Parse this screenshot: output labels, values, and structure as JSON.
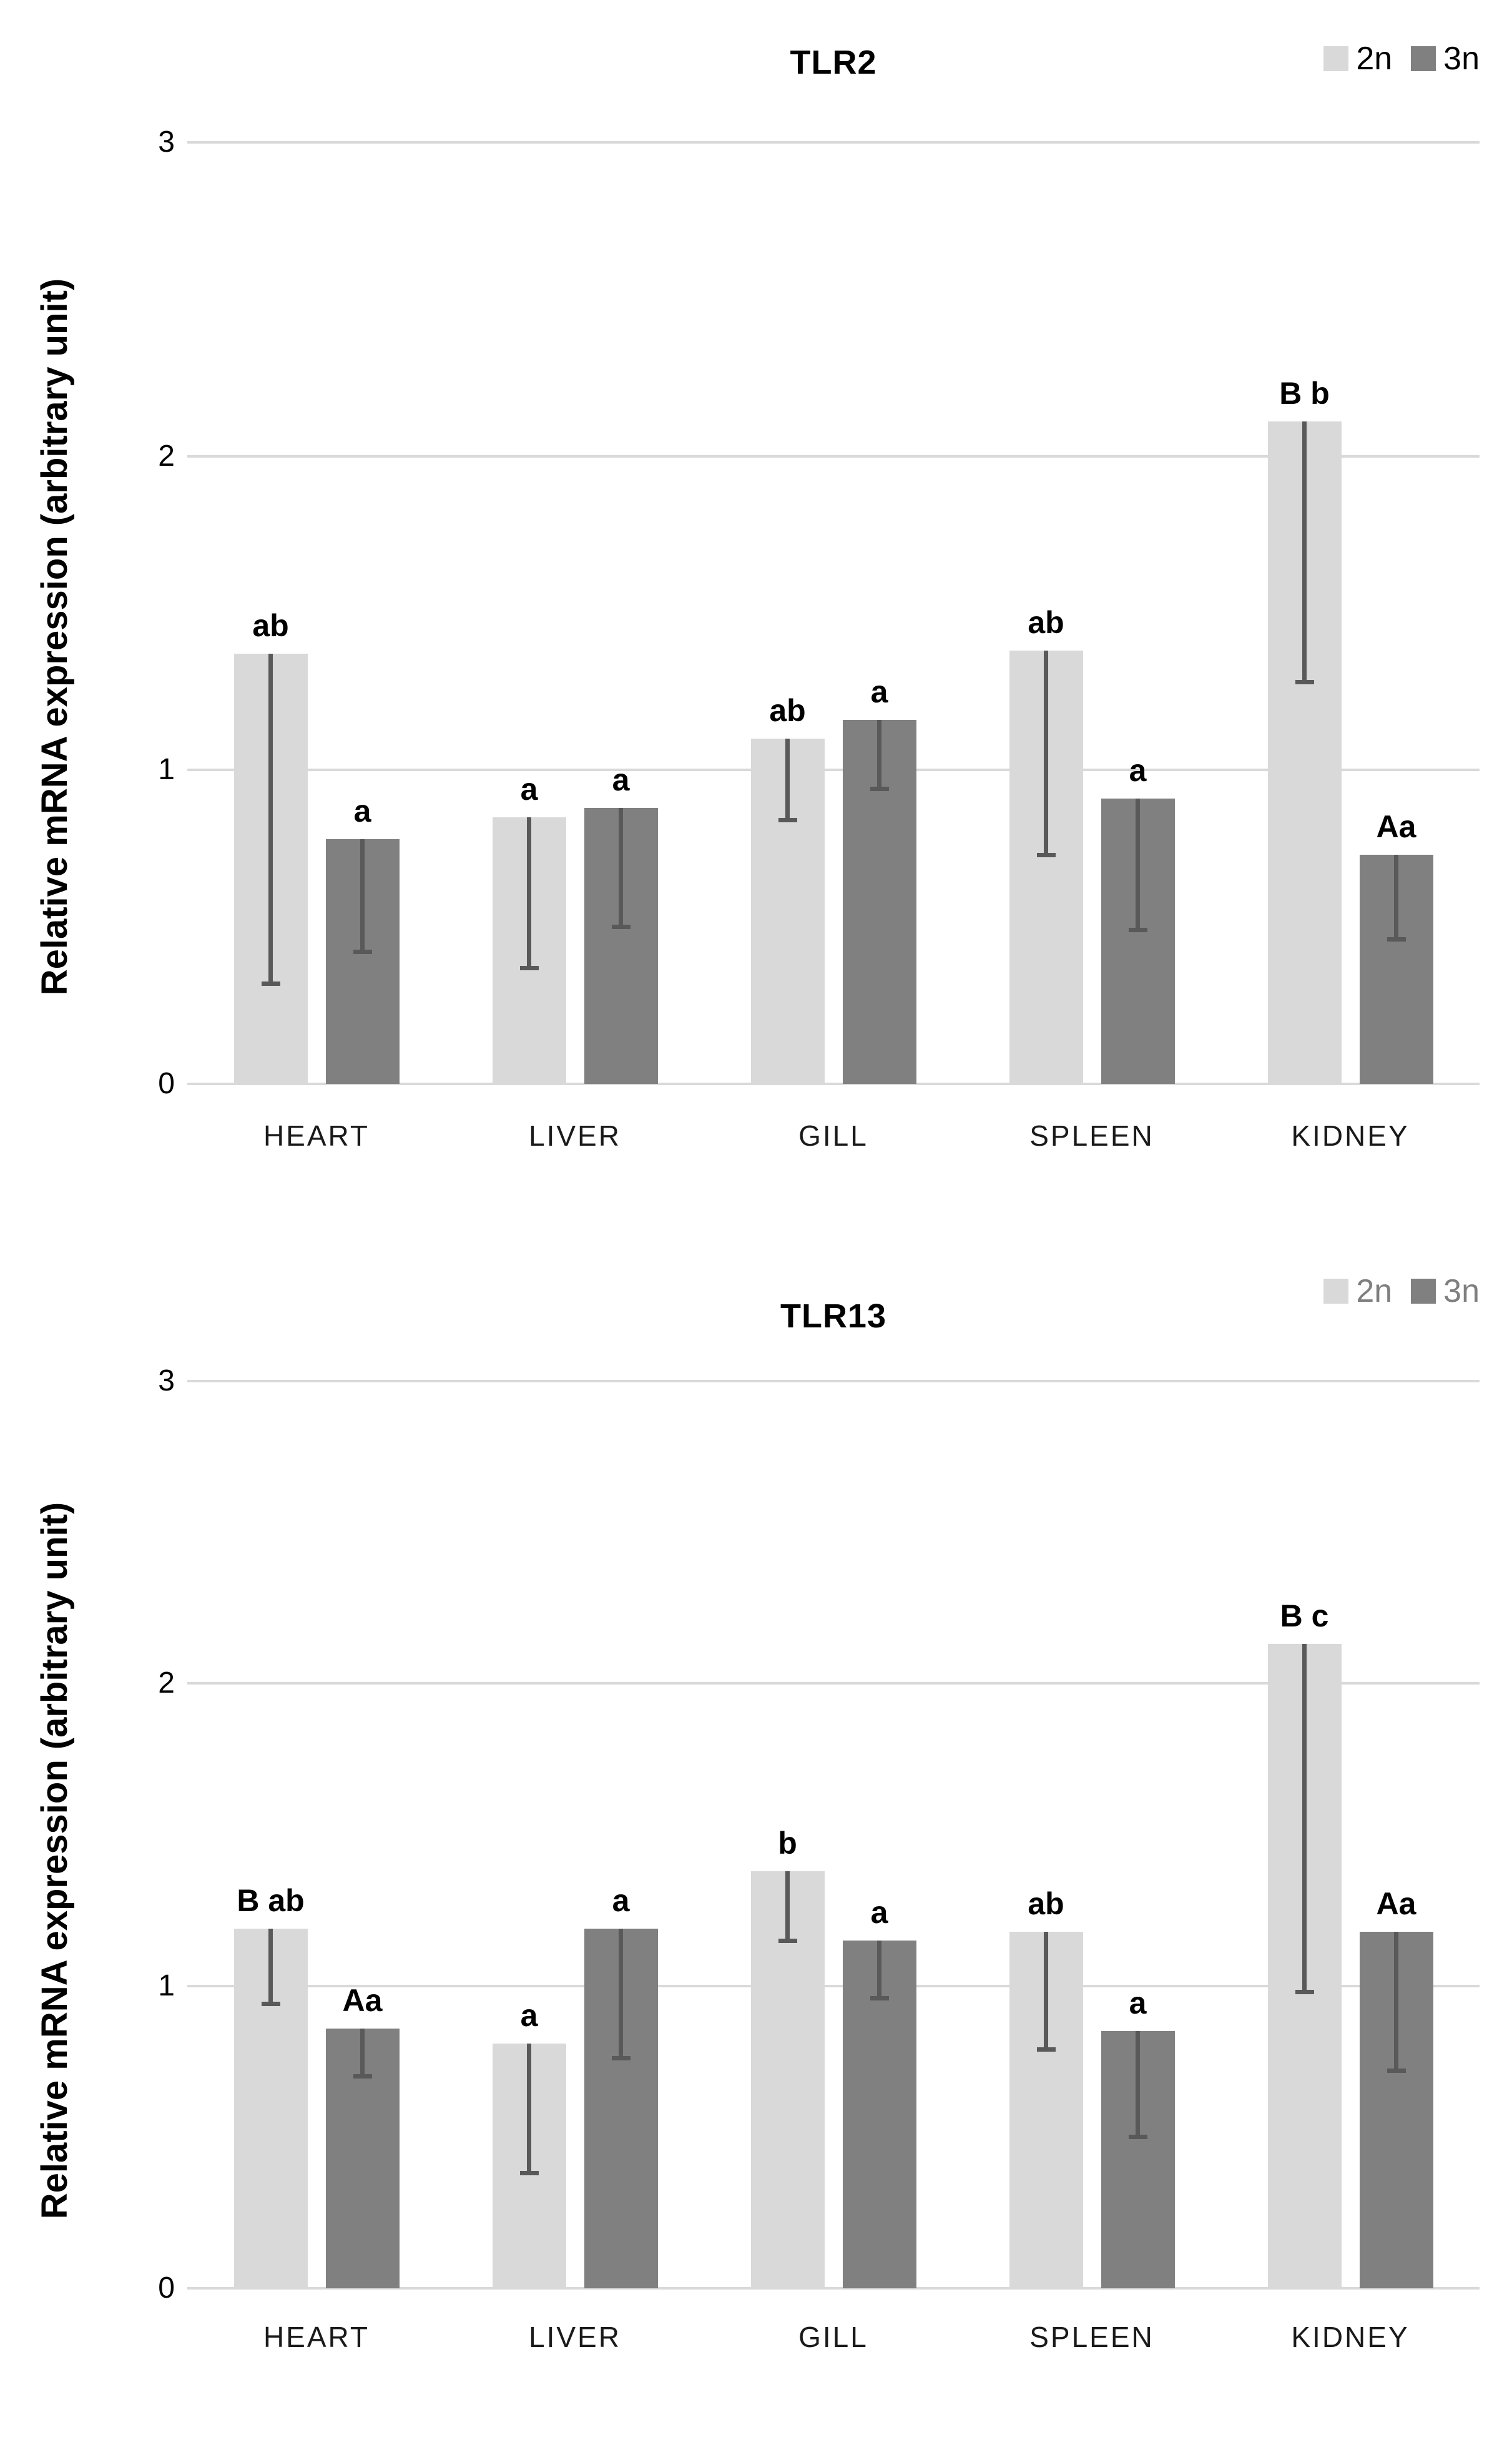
{
  "colors": {
    "bar_2n": "#d9d9d9",
    "bar_3n": "#808080",
    "error_bar": "#595959",
    "gridline": "#d9d9d9",
    "title_text": "#000000",
    "legend_text_top": "#000000",
    "legend_text_bottom": "#7f7f7f"
  },
  "chart_data": [
    {
      "type": "bar",
      "title": "TLR2",
      "ylabel": "Relative mRNA expression (arbitrary unit)",
      "xlabel": "",
      "categories": [
        "HEART",
        "LIVER",
        "GILL",
        "SPLEEN",
        "KIDNEY"
      ],
      "y_ticks": [
        0,
        1,
        2,
        3
      ],
      "ylim": [
        0,
        3
      ],
      "grid": true,
      "legend_position": "top-right",
      "legend": [
        "2n",
        "3n"
      ],
      "legend_text_color": "#000000",
      "series": [
        {
          "name": "2n",
          "values": [
            1.37,
            0.85,
            1.1,
            1.38,
            2.11
          ],
          "error_low": [
            0.32,
            0.37,
            0.84,
            0.73,
            1.28
          ],
          "sig_labels": [
            "ab",
            "a",
            "ab",
            "ab",
            "B b"
          ]
        },
        {
          "name": "3n",
          "values": [
            0.78,
            0.88,
            1.16,
            0.91,
            0.73
          ],
          "error_low": [
            0.42,
            0.5,
            0.94,
            0.49,
            0.46
          ],
          "sig_labels": [
            "a",
            "a",
            "a",
            "a",
            "Aa"
          ]
        }
      ]
    },
    {
      "type": "bar",
      "title": "TLR13",
      "ylabel": "Relative mRNA expression (arbitrary unit)",
      "xlabel": "",
      "categories": [
        "HEART",
        "LIVER",
        "GILL",
        "SPLEEN",
        "KIDNEY"
      ],
      "y_ticks": [
        0,
        1,
        2,
        3
      ],
      "ylim": [
        0,
        3
      ],
      "grid": true,
      "legend_position": "top-right",
      "legend": [
        "2n",
        "3n"
      ],
      "legend_text_color": "#7f7f7f",
      "series": [
        {
          "name": "2n",
          "values": [
            1.19,
            0.81,
            1.38,
            1.18,
            2.13
          ],
          "error_low": [
            0.94,
            0.38,
            1.15,
            0.79,
            0.98
          ],
          "sig_labels": [
            "B ab",
            "a",
            "b",
            "ab",
            "B c"
          ]
        },
        {
          "name": "3n",
          "values": [
            0.86,
            1.19,
            1.15,
            0.85,
            1.18
          ],
          "error_low": [
            0.7,
            0.76,
            0.96,
            0.5,
            0.72
          ],
          "sig_labels": [
            "Aa",
            "a",
            "a",
            "a",
            "Aa"
          ]
        }
      ]
    }
  ]
}
